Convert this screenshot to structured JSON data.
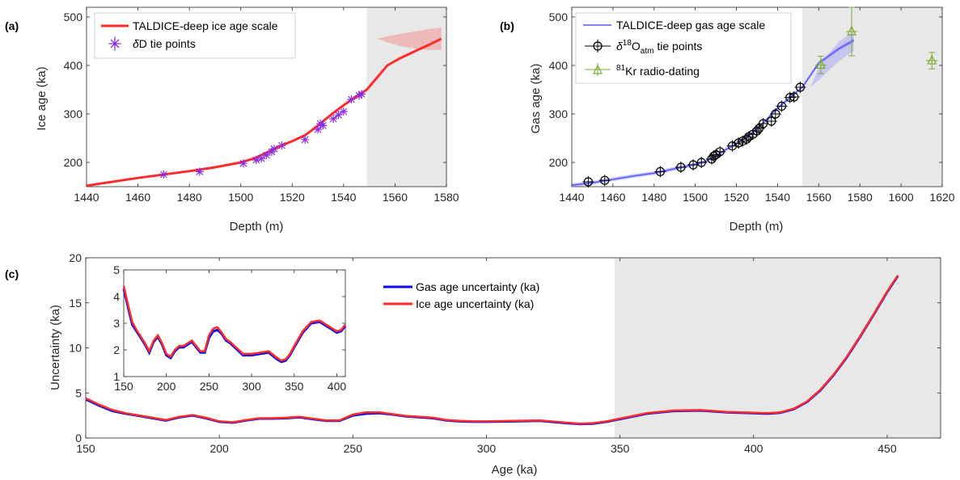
{
  "colors": {
    "ice": "#ff2a2a",
    "gas": "#5a5aff",
    "gas_dark": "#0a0aee",
    "tie_ice": "#8a2be2",
    "kr": "#77ac30",
    "shade": "#e8e8e8"
  },
  "chart_data": [
    {
      "id": "a",
      "panel_label": "(a)",
      "type": "line",
      "xlabel": "Depth (m)",
      "ylabel": "Ice age (ka)",
      "xlim": [
        1440,
        1580
      ],
      "ylim": [
        150,
        520
      ],
      "xticks": [
        1440,
        1460,
        1480,
        1500,
        1520,
        1540,
        1560,
        1580
      ],
      "yticks": [
        200,
        300,
        400,
        500
      ],
      "shaded_from_x": 1549,
      "series": [
        {
          "name": "TALDICE-deep ice age scale",
          "x": [
            1440,
            1460,
            1480,
            1490,
            1500,
            1505,
            1510,
            1515,
            1520,
            1525,
            1530,
            1535,
            1540,
            1545,
            1549,
            1553,
            1557,
            1562,
            1568,
            1573,
            1578
          ],
          "y": [
            152,
            168,
            182,
            190,
            200,
            208,
            220,
            233,
            244,
            256,
            276,
            298,
            318,
            336,
            350,
            375,
            400,
            415,
            430,
            442,
            455
          ],
          "band_upper": [
            455,
            460,
            465,
            470,
            475,
            478
          ],
          "band_lower": [
            455,
            448,
            440,
            435,
            432,
            432
          ]
        },
        {
          "name": "δD tie points",
          "x": [
            1470,
            1484,
            1501,
            1506,
            1508,
            1510,
            1512,
            1513,
            1516,
            1525,
            1530,
            1531,
            1532,
            1536,
            1538,
            1540,
            1543,
            1546,
            1547
          ],
          "y": [
            175,
            181,
            198,
            205,
            208,
            215,
            222,
            228,
            235,
            247,
            268,
            280,
            276,
            290,
            298,
            305,
            330,
            338,
            341
          ]
        }
      ]
    },
    {
      "id": "b",
      "panel_label": "(b)",
      "type": "line",
      "xlabel": "Depth (m)",
      "ylabel": "Gas age (ka)",
      "xlim": [
        1440,
        1620
      ],
      "ylim": [
        150,
        520
      ],
      "xticks": [
        1440,
        1460,
        1480,
        1500,
        1520,
        1540,
        1560,
        1580,
        1600,
        1620
      ],
      "yticks": [
        200,
        300,
        400,
        500
      ],
      "shaded_from_x": 1552,
      "series": [
        {
          "name": "TALDICE-deep gas age scale",
          "x": [
            1440,
            1450,
            1460,
            1470,
            1480,
            1490,
            1500,
            1505,
            1510,
            1515,
            1520,
            1525,
            1530,
            1535,
            1540,
            1545,
            1550,
            1552,
            1556,
            1560,
            1565,
            1570,
            1577
          ],
          "y": [
            153,
            158,
            165,
            172,
            178,
            187,
            196,
            202,
            213,
            227,
            238,
            252,
            268,
            290,
            312,
            330,
            348,
            355,
            380,
            405,
            420,
            435,
            452
          ],
          "band_upper": [
            355,
            395,
            425,
            450,
            470
          ],
          "band_lower": [
            355,
            370,
            390,
            410,
            430
          ]
        },
        {
          "name": "δ18Oatm tie points",
          "x": [
            1448,
            1456,
            1483,
            1493,
            1499,
            1503,
            1508,
            1509,
            1510,
            1512,
            1518,
            1521,
            1523,
            1525,
            1526,
            1528,
            1530,
            1531,
            1533,
            1537,
            1539,
            1542,
            1546,
            1548,
            1551
          ],
          "y": [
            160,
            163,
            181,
            190,
            195,
            200,
            207,
            213,
            216,
            222,
            234,
            240,
            244,
            248,
            253,
            258,
            265,
            270,
            280,
            285,
            300,
            316,
            334,
            335,
            355
          ]
        },
        {
          "name": "81Kr radio-dating",
          "x": [
            1561,
            1576,
            1615
          ],
          "y": [
            401,
            470,
            410
          ],
          "err": [
            18,
            50,
            17
          ]
        }
      ]
    },
    {
      "id": "c",
      "panel_label": "(c)",
      "type": "line",
      "xlabel": "Age (ka)",
      "ylabel": "Uncertainty (ka)",
      "xlim": [
        150,
        470
      ],
      "ylim": [
        0,
        20
      ],
      "xticks": [
        150,
        200,
        250,
        300,
        350,
        400,
        450
      ],
      "yticks": [
        0,
        5,
        10,
        15,
        20
      ],
      "shaded_from_x": 348,
      "series": [
        {
          "name": "Gas age uncertainty (ka)",
          "x": [
            150,
            155,
            160,
            165,
            170,
            175,
            180,
            185,
            190,
            195,
            200,
            205,
            210,
            215,
            220,
            225,
            230,
            235,
            240,
            245,
            250,
            255,
            260,
            265,
            270,
            275,
            280,
            285,
            290,
            295,
            300,
            310,
            320,
            330,
            335,
            340,
            345,
            350,
            360,
            370,
            380,
            390,
            400,
            405,
            410,
            415,
            420,
            425,
            430,
            435,
            440,
            445,
            450,
            454
          ],
          "y": [
            4.3,
            3.6,
            3.0,
            2.7,
            2.45,
            2.2,
            1.95,
            2.3,
            2.5,
            2.2,
            1.8,
            1.7,
            1.95,
            2.15,
            2.15,
            2.2,
            2.3,
            2.1,
            1.9,
            1.9,
            2.5,
            2.7,
            2.75,
            2.6,
            2.4,
            2.3,
            2.2,
            1.95,
            1.85,
            1.8,
            1.8,
            1.85,
            1.9,
            1.65,
            1.55,
            1.6,
            1.8,
            2.1,
            2.7,
            3.0,
            3.05,
            2.85,
            2.75,
            2.7,
            2.8,
            3.2,
            4.0,
            5.3,
            7.0,
            9.0,
            11.3,
            13.7,
            16.2,
            18.0
          ]
        },
        {
          "name": "Ice age uncertainty (ka)",
          "x": [
            150,
            155,
            160,
            165,
            170,
            175,
            180,
            185,
            190,
            195,
            200,
            205,
            210,
            215,
            220,
            225,
            230,
            235,
            240,
            245,
            250,
            255,
            260,
            265,
            270,
            275,
            280,
            285,
            290,
            295,
            300,
            310,
            320,
            330,
            335,
            340,
            345,
            350,
            360,
            370,
            380,
            390,
            400,
            405,
            410,
            415,
            420,
            425,
            430,
            435,
            440,
            445,
            450,
            454
          ],
          "y": [
            4.4,
            3.7,
            3.1,
            2.75,
            2.5,
            2.25,
            2.0,
            2.35,
            2.55,
            2.25,
            1.85,
            1.75,
            2.0,
            2.2,
            2.2,
            2.25,
            2.35,
            2.15,
            1.95,
            1.95,
            2.6,
            2.85,
            2.85,
            2.65,
            2.45,
            2.35,
            2.25,
            2.0,
            1.9,
            1.85,
            1.85,
            1.9,
            1.95,
            1.7,
            1.6,
            1.65,
            1.85,
            2.15,
            2.75,
            3.05,
            3.1,
            2.9,
            2.8,
            2.75,
            2.85,
            3.25,
            4.05,
            5.35,
            7.05,
            9.05,
            11.35,
            13.75,
            16.25,
            18.05
          ]
        }
      ]
    },
    {
      "id": "c_inset",
      "type": "line",
      "xlim": [
        150,
        410
      ],
      "ylim": [
        1,
        5
      ],
      "xticks": [
        150,
        200,
        250,
        300,
        350,
        400
      ],
      "yticks": [
        1,
        2,
        3,
        4,
        5
      ],
      "series": [
        {
          "name": "Gas age uncertainty (ka)",
          "x": [
            150,
            155,
            160,
            165,
            170,
            175,
            180,
            185,
            190,
            195,
            200,
            205,
            210,
            215,
            220,
            225,
            230,
            235,
            240,
            245,
            250,
            255,
            260,
            265,
            270,
            275,
            280,
            285,
            290,
            300,
            310,
            320,
            330,
            335,
            340,
            345,
            350,
            360,
            370,
            380,
            390,
            400,
            405,
            410
          ],
          "y": [
            4.3,
            3.6,
            2.95,
            2.7,
            2.45,
            2.2,
            1.9,
            2.3,
            2.5,
            2.2,
            1.8,
            1.7,
            1.95,
            2.1,
            2.1,
            2.2,
            2.3,
            2.1,
            1.9,
            1.9,
            2.45,
            2.7,
            2.75,
            2.6,
            2.35,
            2.25,
            2.1,
            1.95,
            1.8,
            1.8,
            1.85,
            1.9,
            1.65,
            1.55,
            1.6,
            1.8,
            2.1,
            2.65,
            3.0,
            3.05,
            2.85,
            2.65,
            2.7,
            2.9
          ]
        },
        {
          "name": "Ice age uncertainty (ka)",
          "x": [
            150,
            155,
            160,
            165,
            170,
            175,
            180,
            185,
            190,
            195,
            200,
            205,
            210,
            215,
            220,
            225,
            230,
            235,
            240,
            245,
            250,
            255,
            260,
            265,
            270,
            275,
            280,
            285,
            290,
            300,
            310,
            320,
            330,
            335,
            340,
            345,
            350,
            360,
            370,
            380,
            390,
            400,
            405,
            410
          ],
          "y": [
            4.4,
            3.7,
            3.05,
            2.75,
            2.5,
            2.25,
            1.95,
            2.35,
            2.55,
            2.25,
            1.85,
            1.75,
            2.0,
            2.15,
            2.15,
            2.25,
            2.35,
            2.15,
            1.95,
            1.95,
            2.55,
            2.8,
            2.85,
            2.65,
            2.4,
            2.3,
            2.15,
            2.0,
            1.85,
            1.85,
            1.9,
            1.95,
            1.7,
            1.6,
            1.65,
            1.85,
            2.15,
            2.7,
            3.05,
            3.1,
            2.9,
            2.7,
            2.75,
            2.95
          ]
        }
      ]
    }
  ]
}
